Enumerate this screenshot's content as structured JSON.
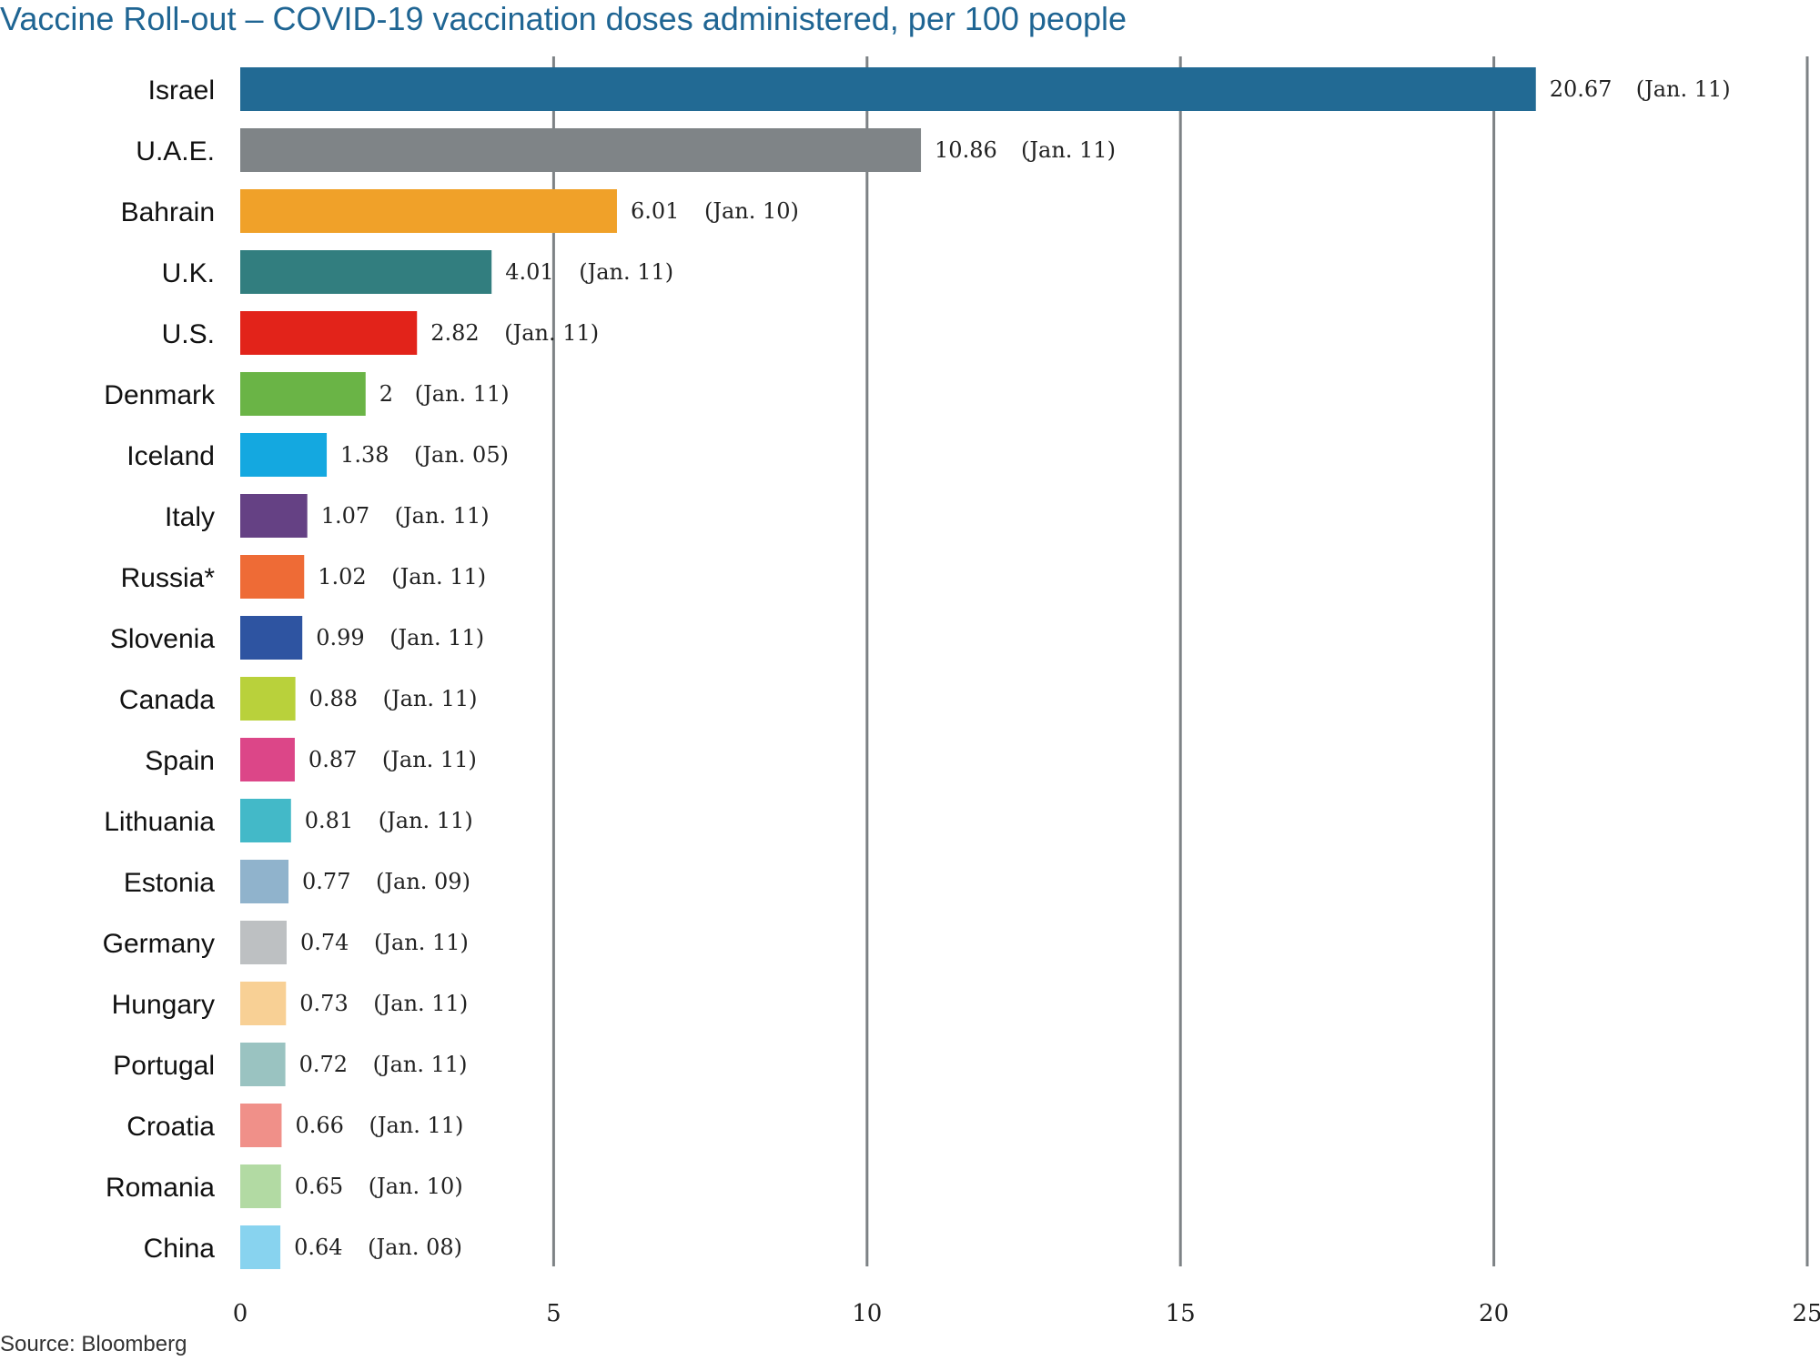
{
  "title": "Vaccine Roll-out – COVID-19 vaccination doses administered, per 100 people",
  "source": "Source: Bloomberg",
  "chart_data": {
    "type": "bar",
    "orientation": "horizontal",
    "title": "Vaccine Roll-out – COVID-19 vaccination doses administered, per 100 people",
    "xlabel": "",
    "ylabel": "",
    "xlim": [
      0,
      25
    ],
    "xticks": [
      0,
      5,
      10,
      15,
      20,
      25
    ],
    "grid": true,
    "legend": "none",
    "categories": [
      "Israel",
      "U.A.E.",
      "Bahrain",
      "U.K.",
      "U.S.",
      "Denmark",
      "Iceland",
      "Italy",
      "Russia*",
      "Slovenia",
      "Canada",
      "Spain",
      "Lithuania",
      "Estonia",
      "Germany",
      "Hungary",
      "Portugal",
      "Croatia",
      "Romania",
      "China"
    ],
    "values": [
      20.67,
      10.86,
      6.01,
      4.01,
      2.82,
      2,
      1.38,
      1.07,
      1.02,
      0.99,
      0.88,
      0.87,
      0.81,
      0.77,
      0.74,
      0.73,
      0.72,
      0.66,
      0.65,
      0.64
    ],
    "value_labels": [
      "20.67",
      "10.86",
      "6.01",
      "4.01",
      "2.82",
      "2",
      "1.38",
      "1.07",
      "1.02",
      "0.99",
      "0.88",
      "0.87",
      "0.81",
      "0.77",
      "0.74",
      "0.73",
      "0.72",
      "0.66",
      "0.65",
      "0.64"
    ],
    "dates": [
      "(Jan. 11)",
      "(Jan. 11)",
      "(Jan. 10)",
      "(Jan. 11)",
      "(Jan. 11)",
      "(Jan. 11)",
      "(Jan. 05)",
      "(Jan. 11)",
      "(Jan. 11)",
      "(Jan. 11)",
      "(Jan. 11)",
      "(Jan. 11)",
      "(Jan. 11)",
      "(Jan. 09)",
      "(Jan. 11)",
      "(Jan. 11)",
      "(Jan. 11)",
      "(Jan. 11)",
      "(Jan. 10)",
      "(Jan. 08)"
    ],
    "colors": [
      "#226a94",
      "#7f8487",
      "#f0a129",
      "#327e7f",
      "#e2231a",
      "#6ab446",
      "#14a8e0",
      "#654184",
      "#ee6b36",
      "#2e54a1",
      "#b9d13b",
      "#dc4688",
      "#43b9c8",
      "#90b3cc",
      "#bdc0c2",
      "#f8d095",
      "#9ac3c1",
      "#f09089",
      "#b2daa3",
      "#88d3ef"
    ],
    "grid_color": "#7d8285"
  }
}
